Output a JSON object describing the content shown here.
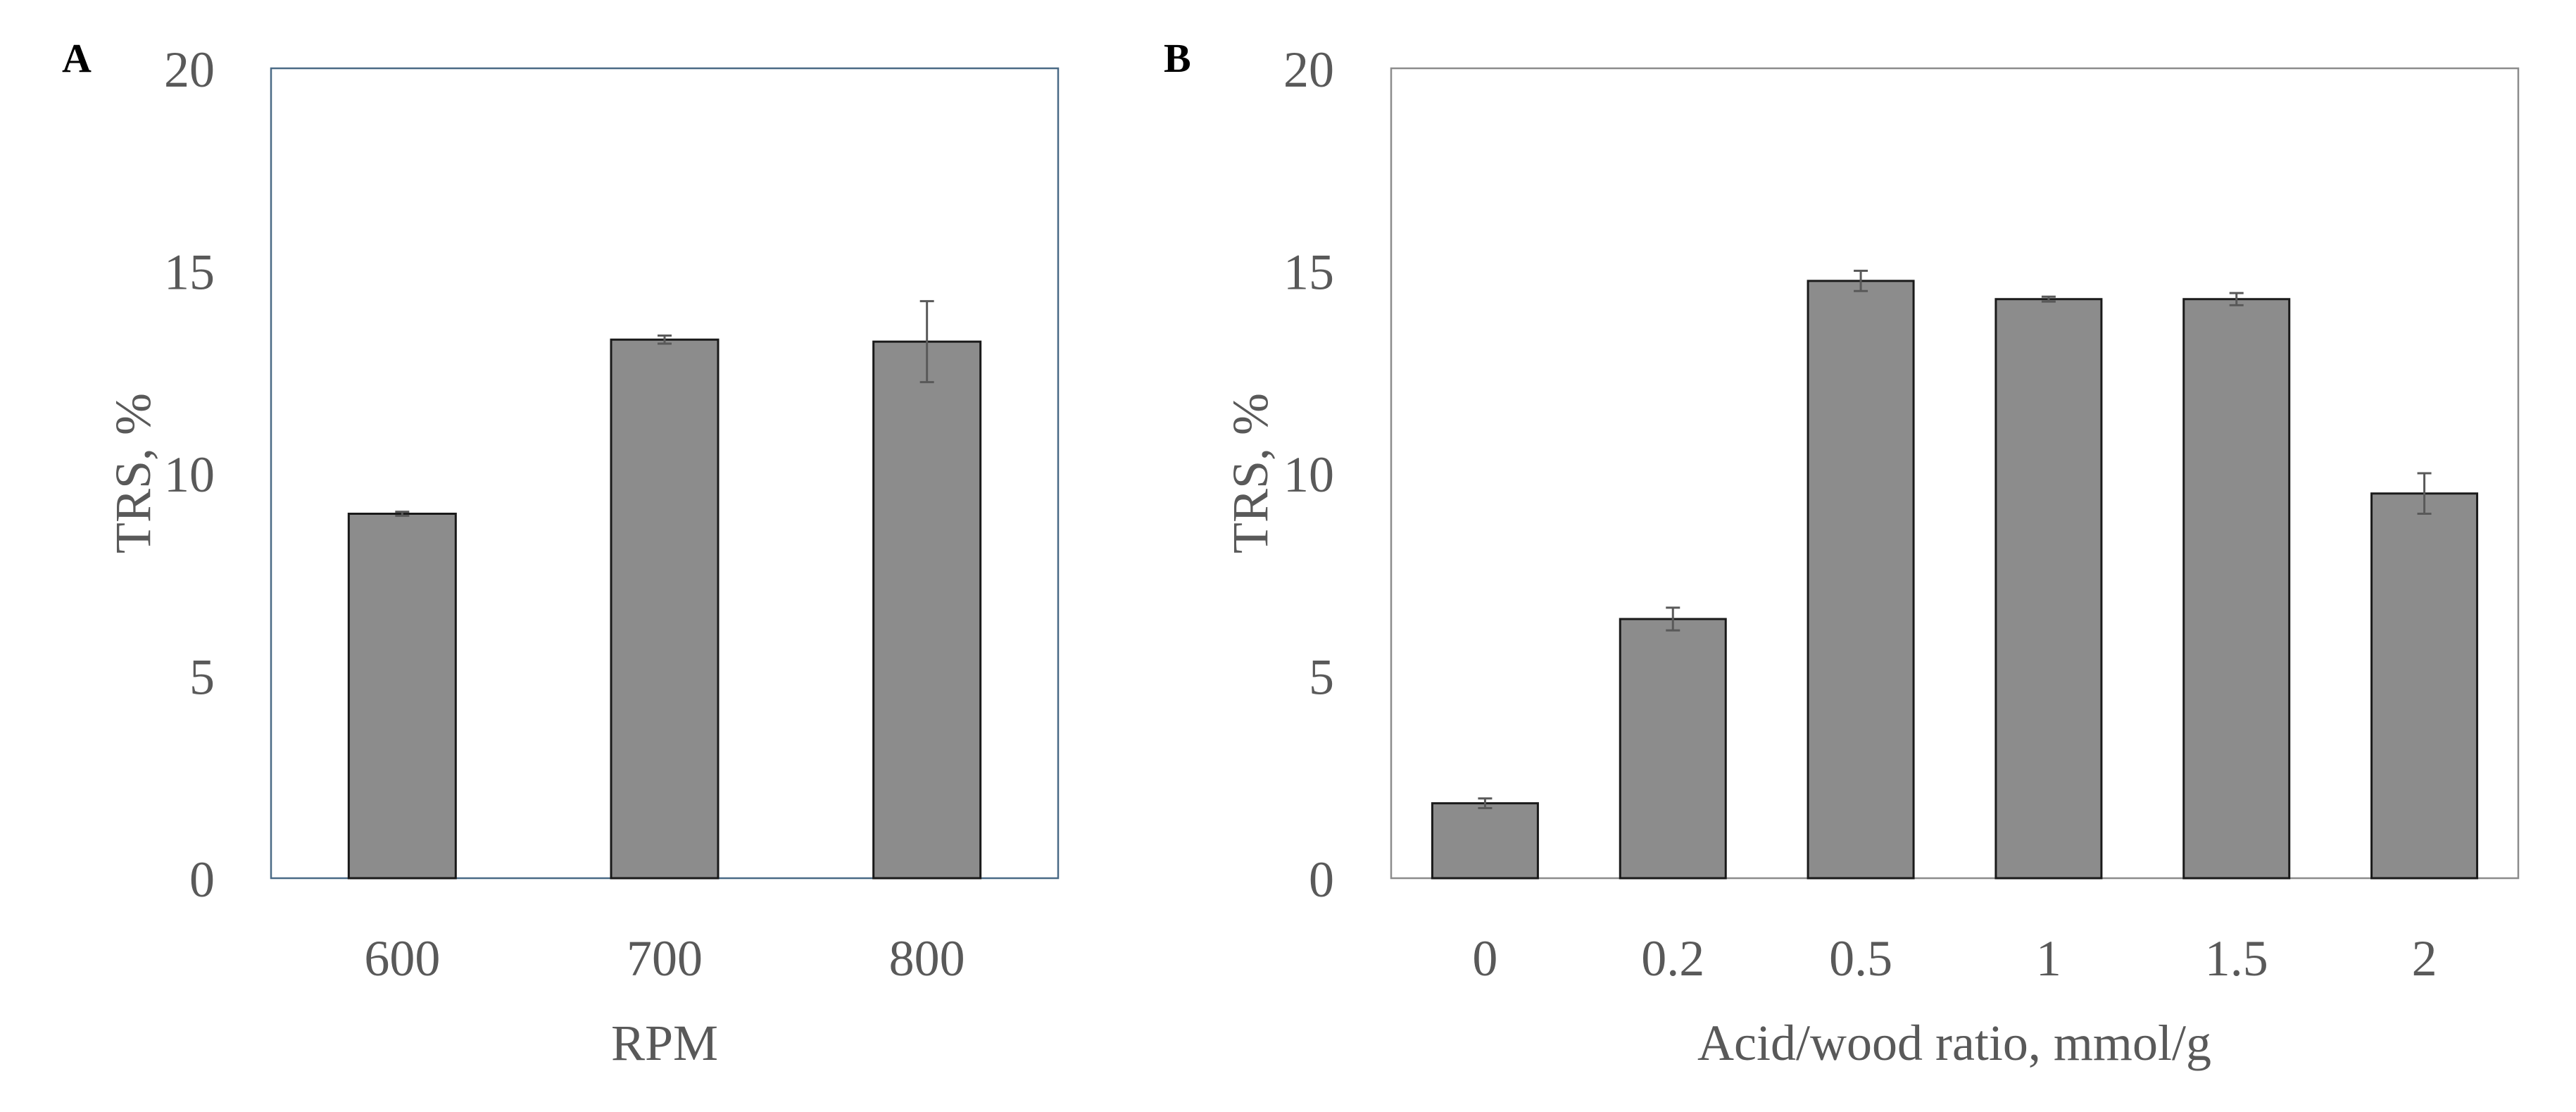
{
  "colors": {
    "bar_fill": "#8c8c8c",
    "bar_stroke": "#1a1a1a",
    "text": "#595959",
    "frame_a": "#4a6a86",
    "frame_b": "#8c8c8c"
  },
  "chart_data": [
    {
      "type": "bar",
      "panel_label": "A",
      "title": "",
      "xlabel": "RPM",
      "ylabel": "TRS, %",
      "categories": [
        "600",
        "700",
        "800"
      ],
      "values": [
        9.0,
        13.3,
        13.25
      ],
      "errors": [
        0.05,
        0.1,
        1.0
      ],
      "ylim": [
        0,
        20
      ],
      "yticks": [
        "0",
        "5",
        "10",
        "15",
        "20"
      ],
      "grid": false,
      "legend": "none"
    },
    {
      "type": "bar",
      "panel_label": "B",
      "title": "",
      "xlabel": "Acid/wood ratio, mmol/g",
      "ylabel": "TRS, %",
      "categories": [
        "0",
        "0.2",
        "0.5",
        "1",
        "1.5",
        "2"
      ],
      "values": [
        1.85,
        6.4,
        14.75,
        14.3,
        14.3,
        9.5
      ],
      "errors": [
        0.12,
        0.28,
        0.25,
        0.06,
        0.15,
        0.5
      ],
      "ylim": [
        0,
        20
      ],
      "yticks": [
        "0",
        "5",
        "10",
        "15",
        "20"
      ],
      "grid": false,
      "legend": "none"
    }
  ]
}
